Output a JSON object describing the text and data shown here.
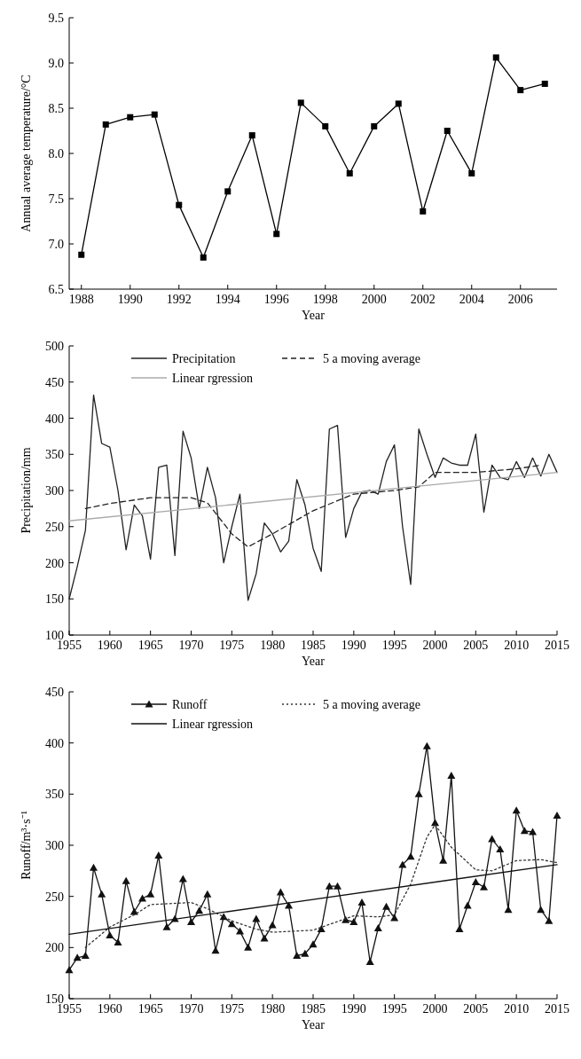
{
  "chart_data": [
    {
      "type": "line",
      "xlabel": "Year",
      "ylabel": "Annual average temperature/°C",
      "marker": "square",
      "line_style": "solid",
      "grid": false,
      "legend": false,
      "xlim": [
        1987.5,
        2007.5
      ],
      "xticks": [
        1988,
        1990,
        1992,
        1994,
        1996,
        1998,
        2000,
        2002,
        2004,
        2006
      ],
      "ylim": [
        6.5,
        9.5
      ],
      "yticks": [
        {
          "value": 6.5,
          "label": "6.5"
        },
        {
          "value": 7,
          "label": "7.0"
        },
        {
          "value": 7.5,
          "label": "7.5"
        },
        {
          "value": 8,
          "label": "8.0"
        },
        {
          "value": 8.5,
          "label": "8.5"
        },
        {
          "value": 9,
          "label": "9.0"
        },
        {
          "value": 9.5,
          "label": "9.5"
        }
      ],
      "x": [
        1988,
        1989,
        1990,
        1991,
        1992,
        1993,
        1994,
        1995,
        1996,
        1997,
        1998,
        1999,
        2000,
        2001,
        2002,
        2003,
        2004,
        2005,
        2006,
        2007
      ],
      "series": [
        {
          "color": "#000000",
          "values": [
            6.88,
            8.32,
            8.4,
            8.43,
            7.43,
            6.85,
            7.58,
            8.2,
            7.11,
            8.56,
            8.3,
            7.78,
            8.3,
            8.55,
            7.36,
            8.25,
            7.78,
            9.06,
            8.7,
            8.77
          ]
        }
      ]
    },
    {
      "type": "line",
      "xlabel": "Year",
      "ylabel": "Precipitation/mm",
      "grid": false,
      "legend": "top",
      "xlim": [
        1955,
        2015
      ],
      "xticks": [
        1955,
        1960,
        1965,
        1970,
        1975,
        1980,
        1985,
        1990,
        1995,
        2000,
        2005,
        2010,
        2015
      ],
      "ylim": [
        100,
        500
      ],
      "yticks": [
        100,
        150,
        200,
        250,
        300,
        350,
        400,
        450,
        500
      ],
      "x": [
        1955,
        1956,
        1957,
        1958,
        1959,
        1960,
        1961,
        1962,
        1963,
        1964,
        1965,
        1966,
        1967,
        1968,
        1969,
        1970,
        1971,
        1972,
        1973,
        1974,
        1975,
        1976,
        1977,
        1978,
        1979,
        1980,
        1981,
        1982,
        1983,
        1984,
        1985,
        1986,
        1987,
        1988,
        1989,
        1990,
        1991,
        1992,
        1993,
        1994,
        1995,
        1996,
        1997,
        1998,
        1999,
        2000,
        2001,
        2002,
        2003,
        2004,
        2005,
        2006,
        2007,
        2008,
        2009,
        2010,
        2011,
        2012,
        2013,
        2014,
        2015
      ],
      "series": [
        {
          "name": "Precipitation",
          "color": "#222222",
          "line_style": "solid",
          "marker": "none",
          "values": [
            150,
            195,
            245,
            432,
            365,
            360,
            300,
            218,
            280,
            265,
            205,
            332,
            335,
            210,
            382,
            345,
            275,
            332,
            290,
            200,
            250,
            295,
            148,
            185,
            255,
            240,
            215,
            230,
            315,
            280,
            220,
            188,
            385,
            390,
            235,
            275,
            298,
            300,
            295,
            340,
            363,
            250,
            170,
            385,
            350,
            318,
            345,
            338,
            335,
            335,
            378,
            270,
            335,
            318,
            315,
            340,
            318,
            345,
            320,
            350,
            325
          ]
        },
        {
          "name": "5 a moving average",
          "color": "#222222",
          "line_style": "dashed",
          "marker": "none",
          "x": [
            1957,
            1960,
            1965,
            1970,
            1972,
            1975,
            1977,
            1980,
            1985,
            1990,
            1995,
            1998,
            2000,
            2005,
            2010,
            2013
          ],
          "values": [
            275,
            282,
            290,
            290,
            283,
            240,
            222,
            240,
            272,
            295,
            300,
            305,
            325,
            325,
            330,
            335
          ]
        },
        {
          "name": "Linear rgression",
          "color": "#aaaaaa",
          "line_style": "solid",
          "marker": "none",
          "x": [
            1955,
            2015
          ],
          "values": [
            258,
            325
          ]
        }
      ]
    },
    {
      "type": "line",
      "xlabel": "Year",
      "ylabel": "Runoff/m³·s⁻¹",
      "grid": false,
      "legend": "top",
      "xlim": [
        1955,
        2015
      ],
      "xticks": [
        1955,
        1960,
        1965,
        1970,
        1975,
        1980,
        1985,
        1990,
        1995,
        2000,
        2005,
        2010,
        2015
      ],
      "ylim": [
        150,
        450
      ],
      "yticks": [
        150,
        200,
        250,
        300,
        350,
        400,
        450
      ],
      "x": [
        1955,
        1956,
        1957,
        1958,
        1959,
        1960,
        1961,
        1962,
        1963,
        1964,
        1965,
        1966,
        1967,
        1968,
        1969,
        1970,
        1971,
        1972,
        1973,
        1974,
        1975,
        1976,
        1977,
        1978,
        1979,
        1980,
        1981,
        1982,
        1983,
        1984,
        1985,
        1986,
        1987,
        1988,
        1989,
        1990,
        1991,
        1992,
        1993,
        1994,
        1995,
        1996,
        1997,
        1998,
        1999,
        2000,
        2001,
        2002,
        2003,
        2004,
        2005,
        2006,
        2007,
        2008,
        2009,
        2010,
        2011,
        2012,
        2013,
        2014,
        2015
      ],
      "series": [
        {
          "name": "Runoff",
          "color": "#111111",
          "line_style": "solid",
          "marker": "triangle",
          "values": [
            178,
            190,
            192,
            278,
            252,
            212,
            205,
            265,
            235,
            248,
            252,
            290,
            220,
            228,
            267,
            225,
            236,
            252,
            197,
            230,
            223,
            216,
            200,
            228,
            209,
            222,
            254,
            241,
            192,
            194,
            203,
            218,
            260,
            260,
            227,
            225,
            244,
            186,
            219,
            240,
            229,
            281,
            289,
            350,
            397,
            322,
            285,
            368,
            218,
            241,
            264,
            259,
            306,
            296,
            237,
            334,
            314,
            313,
            237,
            226,
            329
          ]
        },
        {
          "name": "5 a moving average",
          "color": "#333333",
          "line_style": "dotted",
          "marker": "none",
          "x": [
            1957,
            1960,
            1963,
            1965,
            1970,
            1972,
            1975,
            1978,
            1980,
            1985,
            1990,
            1993,
            1995,
            1997,
            1999,
            2000,
            2002,
            2005,
            2007,
            2010,
            2013,
            2015
          ],
          "values": [
            200,
            220,
            232,
            242,
            244,
            238,
            226,
            218,
            215,
            217,
            231,
            230,
            232,
            262,
            308,
            320,
            298,
            276,
            275,
            285,
            286,
            283
          ]
        },
        {
          "name": "Linear rgression",
          "color": "#111111",
          "line_style": "solid",
          "marker": "none",
          "x": [
            1955,
            2015
          ],
          "values": [
            213,
            281
          ]
        }
      ]
    }
  ]
}
